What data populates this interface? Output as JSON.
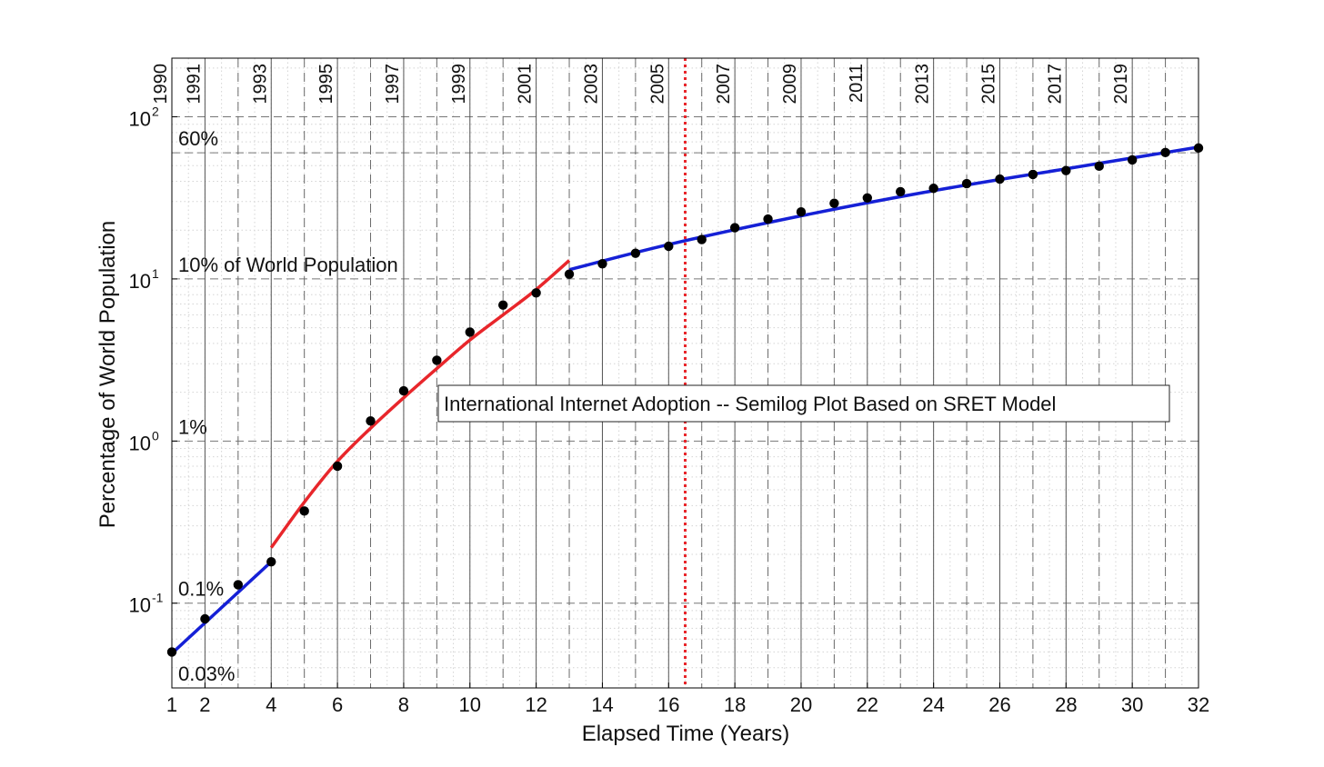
{
  "chart_data": {
    "type": "line",
    "title": "International Internet Adoption -- Semilog Plot Based on SRET Model",
    "xlabel": "Elapsed Time (Years)",
    "ylabel": "Percentage of World Population",
    "xlim": [
      1,
      32
    ],
    "ylim": [
      0.03,
      230
    ],
    "yscale": "log",
    "grid": true,
    "x_ticks": [
      "1",
      "2",
      "4",
      "6",
      "8",
      "10",
      "12",
      "14",
      "16",
      "18",
      "20",
      "22",
      "24",
      "26",
      "28",
      "30",
      "32"
    ],
    "x_tick_values": [
      1,
      2,
      4,
      6,
      8,
      10,
      12,
      14,
      16,
      18,
      20,
      22,
      24,
      26,
      28,
      30,
      32
    ],
    "y_ticks": [
      {
        "value": 0.1,
        "base": "10",
        "exp": "-1"
      },
      {
        "value": 1,
        "base": "10",
        "exp": "0"
      },
      {
        "value": 10,
        "base": "10",
        "exp": "1"
      },
      {
        "value": 100,
        "base": "10",
        "exp": "2"
      }
    ],
    "year_labels": [
      {
        "x": 1,
        "label": "1990"
      },
      {
        "x": 2,
        "label": "1991"
      },
      {
        "x": 4,
        "label": "1993"
      },
      {
        "x": 6,
        "label": "1995"
      },
      {
        "x": 8,
        "label": "1997"
      },
      {
        "x": 10,
        "label": "1999"
      },
      {
        "x": 12,
        "label": "2001"
      },
      {
        "x": 14,
        "label": "2003"
      },
      {
        "x": 16,
        "label": "2005"
      },
      {
        "x": 18,
        "label": "2007"
      },
      {
        "x": 20,
        "label": "2009"
      },
      {
        "x": 22,
        "label": "2011"
      },
      {
        "x": 24,
        "label": "2013"
      },
      {
        "x": 26,
        "label": "2015"
      },
      {
        "x": 28,
        "label": "2017"
      },
      {
        "x": 30,
        "label": "2019"
      }
    ],
    "level_annotations": [
      {
        "y": 60,
        "label": "60%"
      },
      {
        "y": 10,
        "label": "10% of World Population"
      },
      {
        "y": 1,
        "label": "1%"
      },
      {
        "y": 0.1,
        "label": "0.1%"
      },
      {
        "y": 0.03,
        "label": "0.03%"
      }
    ],
    "reference_line": {
      "x": 16.5,
      "color": "#e8262b"
    },
    "observed": {
      "x": [
        1,
        2,
        3,
        4,
        5,
        6,
        7,
        8,
        9,
        10,
        11,
        12,
        13,
        14,
        15,
        16,
        17,
        18,
        19,
        20,
        21,
        22,
        23,
        24,
        25,
        26,
        27,
        28,
        29,
        30,
        31,
        32
      ],
      "y": [
        0.05,
        0.08,
        0.13,
        0.18,
        0.37,
        0.7,
        1.33,
        2.04,
        3.15,
        4.7,
        6.9,
        8.2,
        10.7,
        12.4,
        14.4,
        15.9,
        17.5,
        20.7,
        23.4,
        25.9,
        29.3,
        31.6,
        34.5,
        36.2,
        38.7,
        41.3,
        44.1,
        46.6,
        49.6,
        54.2,
        60.2,
        64.2
      ],
      "color": "#000000"
    },
    "fits": [
      {
        "x_start": 1,
        "x_end": 4,
        "y_start": 0.049,
        "y_end": 0.18,
        "color": "#1520d6"
      },
      {
        "x": [
          4,
          5,
          6,
          7,
          8,
          9,
          10,
          11,
          12,
          13
        ],
        "y": [
          0.22,
          0.42,
          0.75,
          1.2,
          1.85,
          2.8,
          4.2,
          6.0,
          8.6,
          13.0
        ],
        "color": "#e8262b"
      },
      {
        "x": [
          13,
          16,
          20,
          24,
          28,
          32
        ],
        "y": [
          11.4,
          16.3,
          24.5,
          35.0,
          47.8,
          65.0
        ],
        "color": "#1520d6"
      }
    ]
  }
}
